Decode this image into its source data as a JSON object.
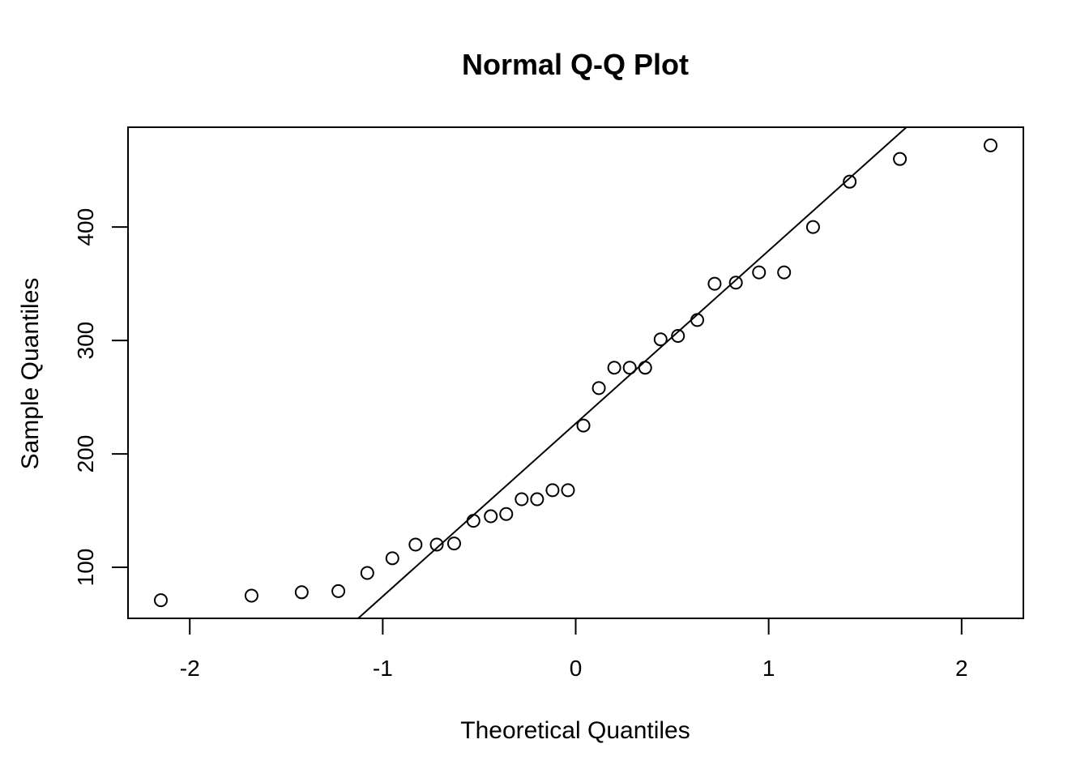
{
  "chart_data": {
    "type": "scatter",
    "title": "Normal Q-Q Plot",
    "xlabel": "Theoretical Quantiles",
    "ylabel": "Sample Quantiles",
    "xlim": [
      -2.32,
      2.32
    ],
    "ylim": [
      55,
      488
    ],
    "xticks": [
      -2,
      -1,
      0,
      1,
      2
    ],
    "xtick_labels": [
      "-2",
      "-1",
      "0",
      "1",
      "2"
    ],
    "yticks": [
      100,
      200,
      300,
      400
    ],
    "ytick_labels": [
      "100",
      "200",
      "300",
      "400"
    ],
    "grid": false,
    "legend": "none",
    "points": [
      {
        "x": -2.15,
        "y": 71
      },
      {
        "x": -1.68,
        "y": 75
      },
      {
        "x": -1.42,
        "y": 78
      },
      {
        "x": -1.23,
        "y": 79
      },
      {
        "x": -1.08,
        "y": 95
      },
      {
        "x": -0.95,
        "y": 108
      },
      {
        "x": -0.83,
        "y": 120
      },
      {
        "x": -0.72,
        "y": 120
      },
      {
        "x": -0.63,
        "y": 121
      },
      {
        "x": -0.53,
        "y": 141
      },
      {
        "x": -0.44,
        "y": 145
      },
      {
        "x": -0.36,
        "y": 147
      },
      {
        "x": -0.28,
        "y": 160
      },
      {
        "x": -0.2,
        "y": 160
      },
      {
        "x": -0.12,
        "y": 168
      },
      {
        "x": -0.04,
        "y": 168
      },
      {
        "x": 0.04,
        "y": 225
      },
      {
        "x": 0.12,
        "y": 258
      },
      {
        "x": 0.2,
        "y": 276
      },
      {
        "x": 0.28,
        "y": 276
      },
      {
        "x": 0.36,
        "y": 276
      },
      {
        "x": 0.44,
        "y": 301
      },
      {
        "x": 0.53,
        "y": 304
      },
      {
        "x": 0.63,
        "y": 318
      },
      {
        "x": 0.72,
        "y": 350
      },
      {
        "x": 0.83,
        "y": 351
      },
      {
        "x": 0.95,
        "y": 360
      },
      {
        "x": 1.08,
        "y": 360
      },
      {
        "x": 1.23,
        "y": 400
      },
      {
        "x": 1.42,
        "y": 440
      },
      {
        "x": 1.68,
        "y": 460
      },
      {
        "x": 2.15,
        "y": 472
      }
    ],
    "reference_line": {
      "intercept": 226.8,
      "slope": 152.4
    }
  }
}
